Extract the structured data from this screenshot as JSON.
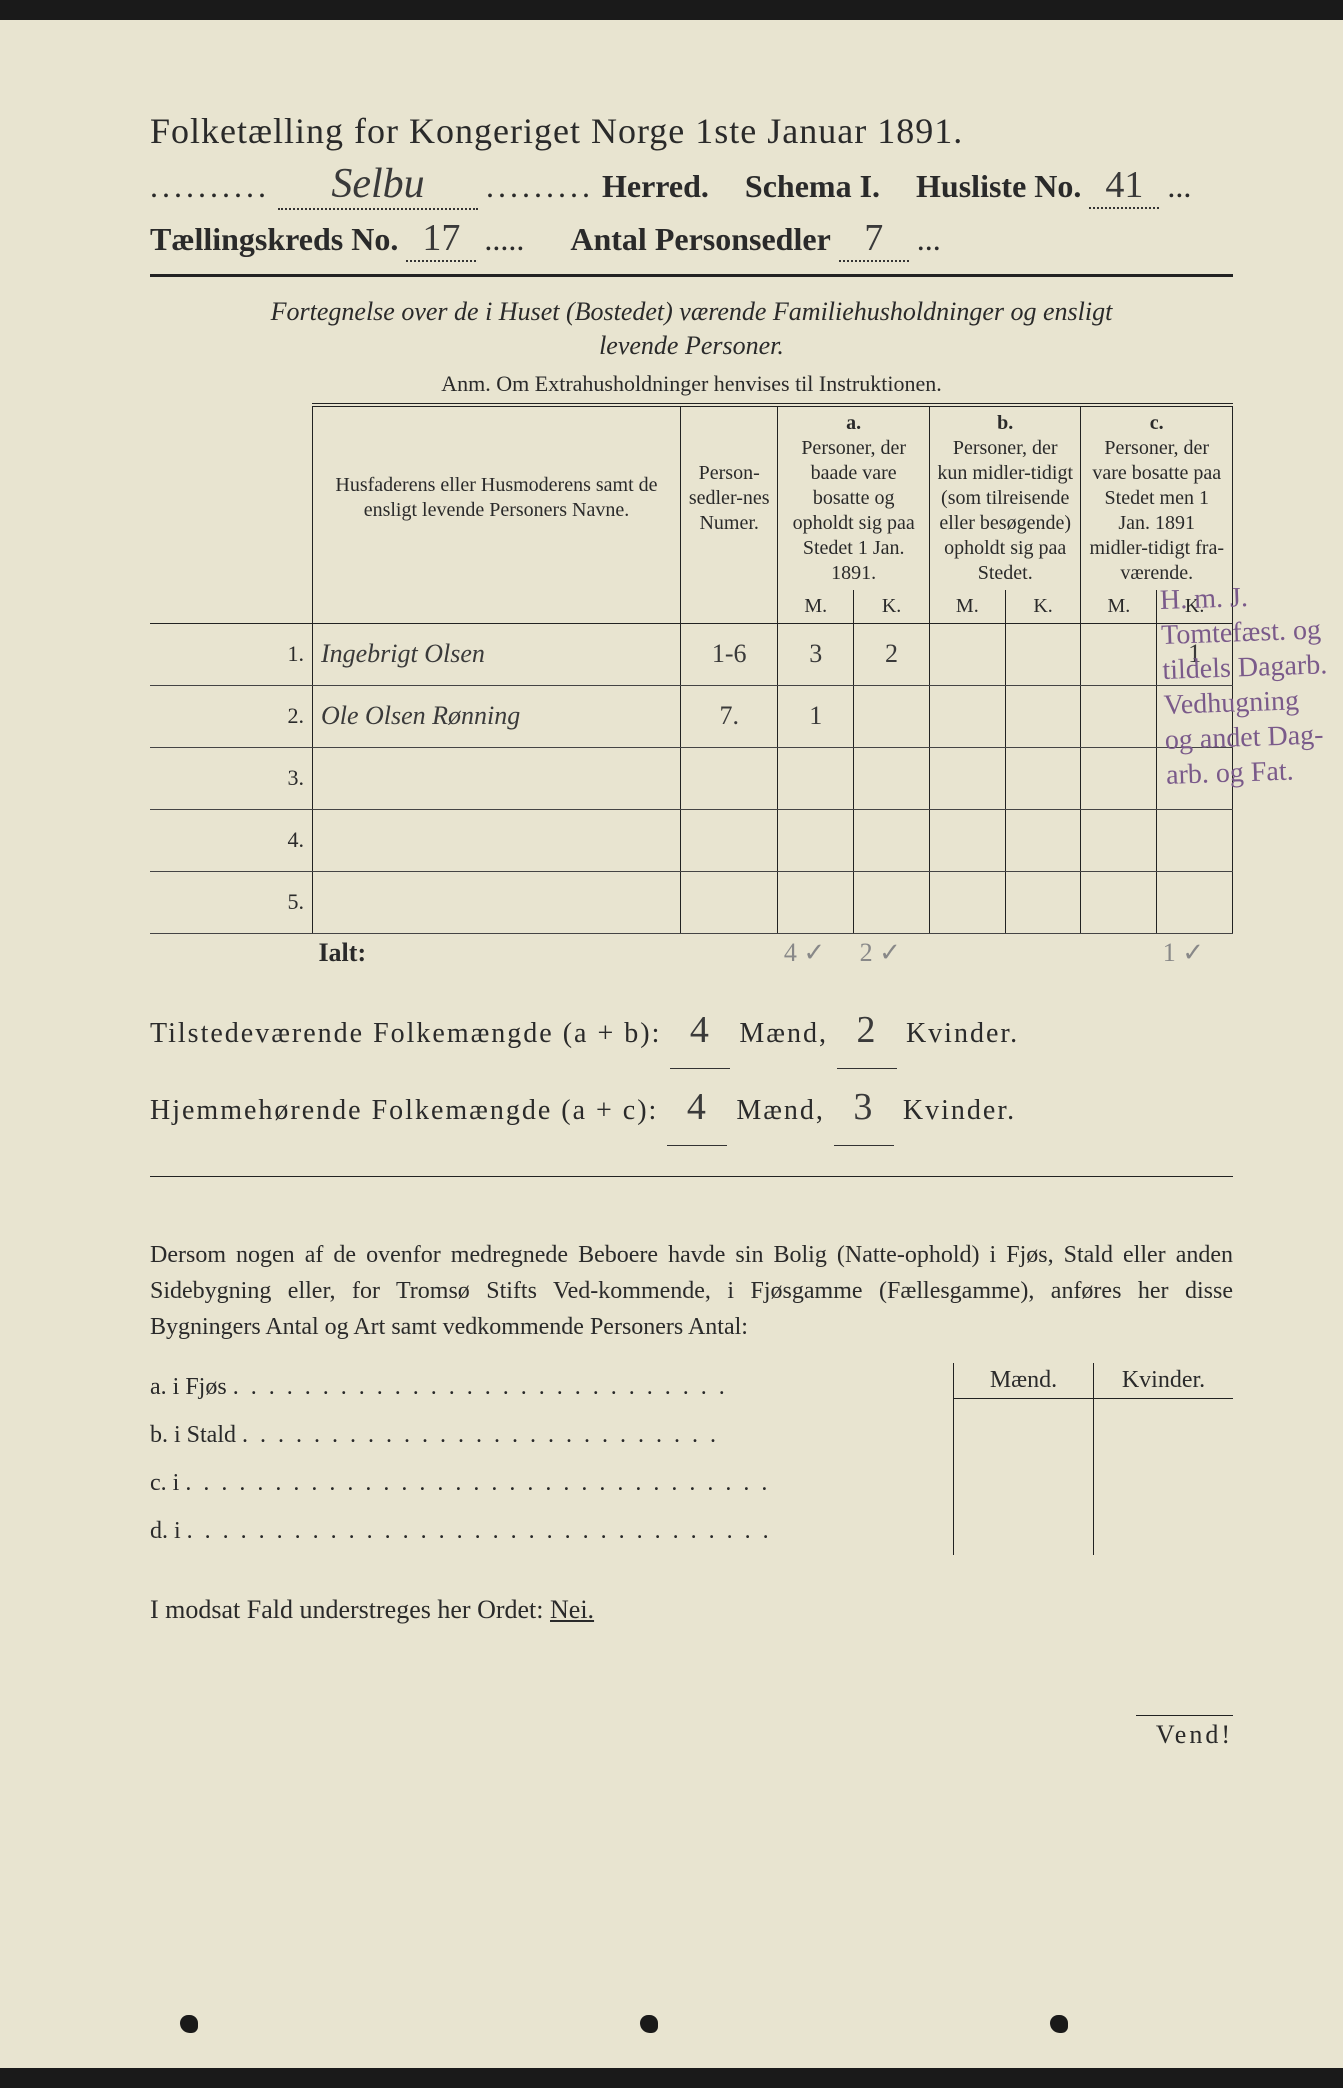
{
  "title": "Folketælling for Kongeriget Norge 1ste Januar 1891.",
  "herred_label": "Herred.",
  "herred_value": "Selbu",
  "schema_label": "Schema I.",
  "husliste_label": "Husliste No.",
  "husliste_value": "41",
  "kreds_label": "Tællingskreds No.",
  "kreds_value": "17",
  "antal_label": "Antal Personsedler",
  "antal_value": "7",
  "fortegnelse_line1": "Fortegnelse over de i Huset (Bostedet) værende Familiehusholdninger og ensligt",
  "fortegnelse_line2": "levende Personer.",
  "anm": "Anm. Om Extrahusholdninger henvises til Instruktionen.",
  "headers": {
    "names": "Husfaderens eller Husmoderens samt de ensligt levende Personers Navne.",
    "num": "Person-sedler-nes Numer.",
    "a_letter": "a.",
    "a_text": "Personer, der baade vare bosatte og opholdt sig paa Stedet 1 Jan. 1891.",
    "b_letter": "b.",
    "b_text": "Personer, der kun midler-tidigt (som tilreisende eller besøgende) opholdt sig paa Stedet.",
    "c_letter": "c.",
    "c_text": "Personer, der vare bosatte paa Stedet men 1 Jan. 1891 midler-tidigt fra-værende.",
    "M": "M.",
    "K": "K."
  },
  "rows": [
    {
      "n": "1.",
      "name": "Ingebrigt Olsen",
      "num": "1-6",
      "aM": "3",
      "aK": "2",
      "bM": "",
      "bK": "",
      "cM": "",
      "cK": "1"
    },
    {
      "n": "2.",
      "name": "Ole Olsen Rønning",
      "num": "7.",
      "aM": "1",
      "aK": "",
      "bM": "",
      "bK": "",
      "cM": "",
      "cK": ""
    },
    {
      "n": "3.",
      "name": "",
      "num": "",
      "aM": "",
      "aK": "",
      "bM": "",
      "bK": "",
      "cM": "",
      "cK": ""
    },
    {
      "n": "4.",
      "name": "",
      "num": "",
      "aM": "",
      "aK": "",
      "bM": "",
      "bK": "",
      "cM": "",
      "cK": ""
    },
    {
      "n": "5.",
      "name": "",
      "num": "",
      "aM": "",
      "aK": "",
      "bM": "",
      "bK": "",
      "cM": "",
      "cK": ""
    }
  ],
  "ialt_label": "Ialt:",
  "ialt_aM": "4 ✓",
  "ialt_aK": "2 ✓",
  "ialt_cK": "1 ✓",
  "summary": {
    "line1_a": "Tilstedeværende Folkemængde (a + b):",
    "line1_m": "4",
    "line1_mlabel": "Mænd,",
    "line1_k": "2",
    "line1_klabel": "Kvinder.",
    "line2_a": "Hjemmehørende Folkemængde (a + c):",
    "line2_m": "4",
    "line2_k": "3"
  },
  "para": "Dersom nogen af de ovenfor medregnede Beboere havde sin Bolig (Natte-ophold) i Fjøs, Stald eller anden Sidebygning eller, for Tromsø Stifts Ved-kommende, i Fjøsgamme (Fællesgamme), anføres her disse Bygningers Antal og Art samt vedkommende Personers Antal:",
  "side": {
    "maend": "Mænd.",
    "kvinder": "Kvinder.",
    "a": "a.  i     Fjøs",
    "b": "b.  i     Stald",
    "c": "c.  i",
    "d": "d.  i"
  },
  "nei": "I modsat Fald understreges her Ordet:",
  "nei_word": "Nei.",
  "vend": "Vend!",
  "margin_note": "H. m. J. Tomtefæst. og tildels Dagarb. Vedhugning og andet Dag-arb. og Fat."
}
